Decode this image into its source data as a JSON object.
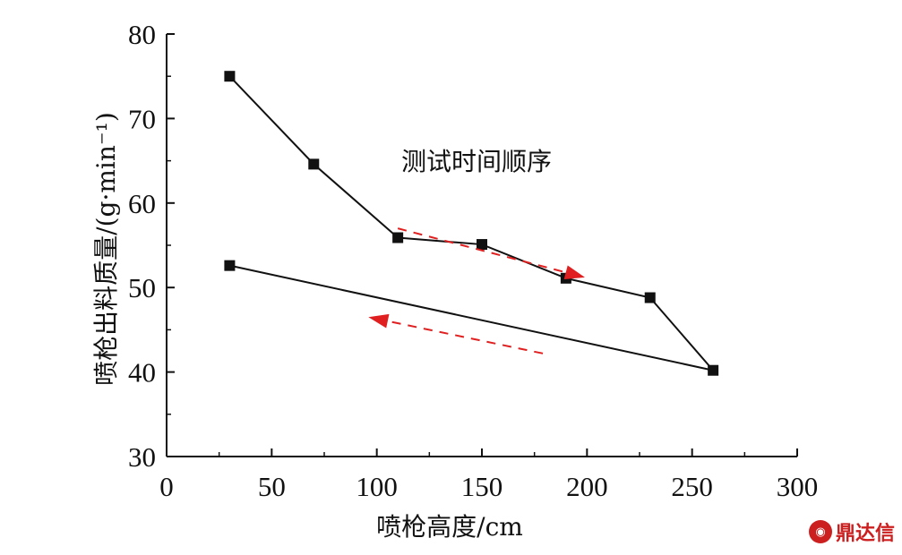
{
  "chart_data": {
    "type": "line",
    "x": [
      30,
      70,
      110,
      150,
      190,
      230,
      260,
      30
    ],
    "series": [
      {
        "values": [
          75.0,
          64.6,
          55.9,
          55.1,
          51.1,
          48.8,
          40.2,
          52.6
        ]
      }
    ],
    "xlabel": "喷枪高度/cm",
    "ylabel": "喷枪出料质量/(g·min⁻¹)",
    "xlim": [
      0,
      300
    ],
    "ylim": [
      30,
      80
    ],
    "xticks": [
      0,
      50,
      100,
      150,
      200,
      250,
      300
    ],
    "yticks": [
      30,
      40,
      50,
      60,
      70,
      80
    ],
    "grid": false,
    "annotation": "测试时间顺序",
    "colors": {
      "line": "#111111",
      "marker": "#111111",
      "arrow": "#e02020"
    }
  },
  "watermark": {
    "text": "鼎达信"
  }
}
